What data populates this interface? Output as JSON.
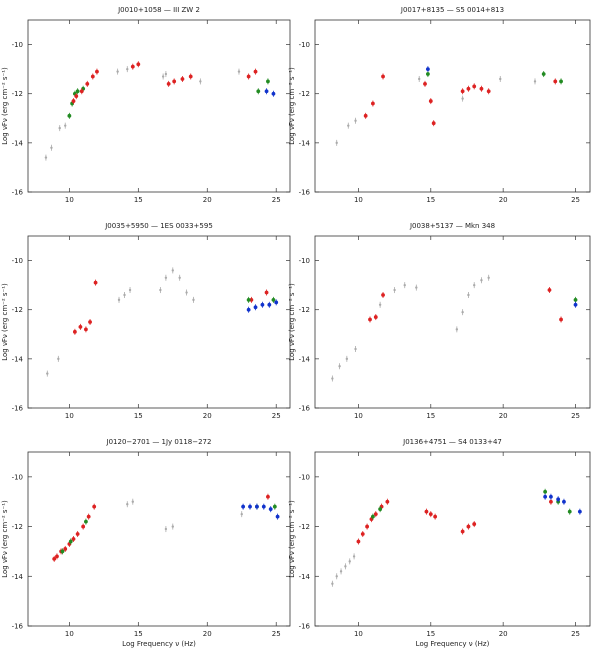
{
  "chart_data": [
    {
      "type": "scatter",
      "title": "J0010+1058 — III ZW 2",
      "xlabel": "",
      "ylabel": "Log νFν (erg cm⁻² s⁻¹)",
      "xlim": [
        7,
        26
      ],
      "ylim": [
        -16,
        -9
      ],
      "xticks": [
        "10",
        "15",
        "20",
        "25"
      ],
      "yticks": [
        "-10",
        "-12",
        "-14",
        "-16"
      ],
      "series": [
        {
          "color": "#aaaaaa",
          "points": [
            [
              8.3,
              -14.6
            ],
            [
              8.7,
              -14.2
            ],
            [
              9.3,
              -13.4
            ],
            [
              9.7,
              -13.3
            ],
            [
              13.5,
              -11.1
            ],
            [
              14.2,
              -11.0
            ],
            [
              16.8,
              -11.3
            ],
            [
              17.0,
              -11.2
            ],
            [
              19.5,
              -11.5
            ],
            [
              22.3,
              -11.1
            ]
          ]
        },
        {
          "color": "#228B22",
          "points": [
            [
              10.0,
              -12.9
            ],
            [
              10.2,
              -12.4
            ],
            [
              10.4,
              -12.0
            ],
            [
              10.6,
              -11.9
            ],
            [
              11.0,
              -11.8
            ],
            [
              23.7,
              -11.9
            ],
            [
              24.4,
              -11.5
            ]
          ]
        },
        {
          "color": "#dd2222",
          "points": [
            [
              10.3,
              -12.3
            ],
            [
              10.5,
              -12.1
            ],
            [
              10.9,
              -11.9
            ],
            [
              11.3,
              -11.6
            ],
            [
              11.7,
              -11.3
            ],
            [
              12.0,
              -11.1
            ],
            [
              14.6,
              -10.9
            ],
            [
              15.0,
              -10.8
            ],
            [
              17.2,
              -11.6
            ],
            [
              17.6,
              -11.5
            ],
            [
              18.2,
              -11.4
            ],
            [
              18.8,
              -11.3
            ],
            [
              23.0,
              -11.3
            ],
            [
              23.5,
              -11.1
            ]
          ]
        },
        {
          "color": "#1133cc",
          "points": [
            [
              24.3,
              -11.9
            ],
            [
              24.8,
              -12.0
            ]
          ]
        }
      ]
    },
    {
      "type": "scatter",
      "title": "J0017+8135 — S5 0014+813",
      "xlabel": "",
      "ylabel": "Log νFν (erg cm⁻² s⁻¹)",
      "xlim": [
        7,
        26
      ],
      "ylim": [
        -16,
        -9
      ],
      "xticks": [
        "10",
        "15",
        "20",
        "25"
      ],
      "yticks": [
        "-10",
        "-12",
        "-14",
        "-16"
      ],
      "series": [
        {
          "color": "#aaaaaa",
          "points": [
            [
              8.5,
              -14.0
            ],
            [
              9.3,
              -13.3
            ],
            [
              9.8,
              -13.1
            ],
            [
              14.2,
              -11.4
            ],
            [
              17.2,
              -12.2
            ],
            [
              19.8,
              -11.4
            ],
            [
              22.2,
              -11.5
            ]
          ]
        },
        {
          "color": "#dd2222",
          "points": [
            [
              10.5,
              -12.9
            ],
            [
              11.0,
              -12.4
            ],
            [
              11.7,
              -11.3
            ],
            [
              14.6,
              -11.6
            ],
            [
              15.0,
              -12.3
            ],
            [
              15.2,
              -13.2
            ],
            [
              17.2,
              -11.9
            ],
            [
              17.6,
              -11.8
            ],
            [
              18.0,
              -11.7
            ],
            [
              18.5,
              -11.8
            ],
            [
              19.0,
              -11.9
            ],
            [
              23.6,
              -11.5
            ]
          ]
        },
        {
          "color": "#228B22",
          "points": [
            [
              14.8,
              -11.2
            ],
            [
              22.8,
              -11.2
            ],
            [
              24.0,
              -11.5
            ]
          ]
        },
        {
          "color": "#1133cc",
          "points": [
            [
              14.8,
              -11.0
            ]
          ]
        }
      ]
    },
    {
      "type": "scatter",
      "title": "J0035+5950 — 1ES 0033+595",
      "xlabel": "",
      "ylabel": "Log νFν (erg cm⁻² s⁻¹)",
      "xlim": [
        7,
        26
      ],
      "ylim": [
        -16,
        -9
      ],
      "xticks": [
        "10",
        "15",
        "20",
        "25"
      ],
      "yticks": [
        "-10",
        "-12",
        "-14",
        "-16"
      ],
      "series": [
        {
          "color": "#aaaaaa",
          "points": [
            [
              8.4,
              -14.6
            ],
            [
              9.2,
              -14.0
            ],
            [
              13.6,
              -11.6
            ],
            [
              14.0,
              -11.4
            ],
            [
              14.4,
              -11.2
            ],
            [
              16.6,
              -11.2
            ],
            [
              17.0,
              -10.7
            ],
            [
              17.5,
              -10.4
            ],
            [
              18.0,
              -10.7
            ],
            [
              18.5,
              -11.3
            ],
            [
              19.0,
              -11.6
            ]
          ]
        },
        {
          "color": "#dd2222",
          "points": [
            [
              10.4,
              -12.9
            ],
            [
              10.8,
              -12.7
            ],
            [
              11.2,
              -12.8
            ],
            [
              11.5,
              -12.5
            ],
            [
              11.9,
              -10.9
            ],
            [
              23.2,
              -11.6
            ],
            [
              24.3,
              -11.3
            ]
          ]
        },
        {
          "color": "#228B22",
          "points": [
            [
              23.0,
              -11.6
            ],
            [
              24.8,
              -11.6
            ]
          ]
        },
        {
          "color": "#1133cc",
          "points": [
            [
              23.0,
              -12.0
            ],
            [
              23.5,
              -11.9
            ],
            [
              24.0,
              -11.8
            ],
            [
              24.5,
              -11.8
            ],
            [
              25.0,
              -11.7
            ]
          ]
        }
      ]
    },
    {
      "type": "scatter",
      "title": "J0038+5137 — Mkn 348",
      "xlabel": "",
      "ylabel": "Log νFν (erg cm⁻² s⁻¹)",
      "xlim": [
        7,
        26
      ],
      "ylim": [
        -16,
        -9
      ],
      "xticks": [
        "10",
        "15",
        "20",
        "25"
      ],
      "yticks": [
        "-10",
        "-12",
        "-14",
        "-16"
      ],
      "series": [
        {
          "color": "#aaaaaa",
          "points": [
            [
              8.2,
              -14.8
            ],
            [
              8.7,
              -14.3
            ],
            [
              9.2,
              -14.0
            ],
            [
              9.8,
              -13.6
            ],
            [
              11.5,
              -11.8
            ],
            [
              12.5,
              -11.2
            ],
            [
              13.2,
              -11.0
            ],
            [
              14.0,
              -11.1
            ],
            [
              16.8,
              -12.8
            ],
            [
              17.2,
              -12.1
            ],
            [
              17.6,
              -11.4
            ],
            [
              18.0,
              -11.0
            ],
            [
              18.5,
              -10.8
            ],
            [
              19.0,
              -10.7
            ]
          ]
        },
        {
          "color": "#dd2222",
          "points": [
            [
              10.8,
              -12.4
            ],
            [
              11.2,
              -12.3
            ],
            [
              11.7,
              -11.4
            ],
            [
              23.2,
              -11.2
            ],
            [
              24.0,
              -12.4
            ]
          ]
        },
        {
          "color": "#228B22",
          "points": [
            [
              25.0,
              -11.6
            ]
          ]
        },
        {
          "color": "#1133cc",
          "points": [
            [
              25.0,
              -11.8
            ]
          ]
        }
      ]
    },
    {
      "type": "scatter",
      "title": "J0120−2701 — 1Jy 0118−272",
      "xlabel": "Log Frequency ν (Hz)",
      "ylabel": "Log νFν (erg cm⁻² s⁻¹)",
      "xlim": [
        7,
        26
      ],
      "ylim": [
        -16,
        -9
      ],
      "xticks": [
        "10",
        "15",
        "20",
        "25"
      ],
      "yticks": [
        "-10",
        "-12",
        "-14",
        "-16"
      ],
      "series": [
        {
          "color": "#aaaaaa",
          "points": [
            [
              14.2,
              -11.1
            ],
            [
              14.6,
              -11.0
            ],
            [
              17.0,
              -12.1
            ],
            [
              17.5,
              -12.0
            ],
            [
              22.5,
              -11.5
            ]
          ]
        },
        {
          "color": "#dd2222",
          "points": [
            [
              8.9,
              -13.3
            ],
            [
              9.1,
              -13.2
            ],
            [
              9.4,
              -13.0
            ],
            [
              9.7,
              -12.9
            ],
            [
              10.0,
              -12.7
            ],
            [
              10.3,
              -12.5
            ],
            [
              10.6,
              -12.3
            ],
            [
              11.0,
              -12.0
            ],
            [
              11.4,
              -11.6
            ],
            [
              11.8,
              -11.2
            ],
            [
              24.4,
              -10.8
            ]
          ]
        },
        {
          "color": "#228B22",
          "points": [
            [
              9.5,
              -13.0
            ],
            [
              10.1,
              -12.6
            ],
            [
              11.2,
              -11.8
            ],
            [
              23.6,
              -11.2
            ],
            [
              24.9,
              -11.2
            ]
          ]
        },
        {
          "color": "#1133cc",
          "points": [
            [
              22.6,
              -11.2
            ],
            [
              23.1,
              -11.2
            ],
            [
              23.6,
              -11.2
            ],
            [
              24.1,
              -11.2
            ],
            [
              24.6,
              -11.3
            ],
            [
              25.1,
              -11.6
            ]
          ]
        }
      ]
    },
    {
      "type": "scatter",
      "title": "J0136+4751 — S4 0133+47",
      "xlabel": "Log Frequency ν (Hz)",
      "ylabel": "Log νFν (erg cm⁻² s⁻¹)",
      "xlim": [
        7,
        26
      ],
      "ylim": [
        -16,
        -9
      ],
      "xticks": [
        "10",
        "15",
        "20",
        "25"
      ],
      "yticks": [
        "-10",
        "-12",
        "-14",
        "-16"
      ],
      "series": [
        {
          "color": "#aaaaaa",
          "points": [
            [
              8.2,
              -14.3
            ],
            [
              8.5,
              -14.0
            ],
            [
              8.8,
              -13.8
            ],
            [
              9.1,
              -13.6
            ],
            [
              9.4,
              -13.4
            ],
            [
              9.7,
              -13.2
            ]
          ]
        },
        {
          "color": "#dd2222",
          "points": [
            [
              10.0,
              -12.6
            ],
            [
              10.3,
              -12.3
            ],
            [
              10.6,
              -12.0
            ],
            [
              10.9,
              -11.7
            ],
            [
              11.2,
              -11.5
            ],
            [
              11.6,
              -11.2
            ],
            [
              12.0,
              -11.0
            ],
            [
              14.7,
              -11.4
            ],
            [
              15.0,
              -11.5
            ],
            [
              15.3,
              -11.6
            ],
            [
              17.2,
              -12.2
            ],
            [
              17.6,
              -12.0
            ],
            [
              18.0,
              -11.9
            ],
            [
              23.3,
              -11.0
            ]
          ]
        },
        {
          "color": "#228B22",
          "points": [
            [
              11.0,
              -11.6
            ],
            [
              11.5,
              -11.3
            ],
            [
              22.9,
              -10.6
            ],
            [
              23.8,
              -11.0
            ],
            [
              24.6,
              -11.4
            ]
          ]
        },
        {
          "color": "#1133cc",
          "points": [
            [
              22.9,
              -10.8
            ],
            [
              23.3,
              -10.8
            ],
            [
              23.8,
              -10.9
            ],
            [
              24.2,
              -11.0
            ],
            [
              25.3,
              -11.4
            ]
          ]
        }
      ]
    }
  ]
}
